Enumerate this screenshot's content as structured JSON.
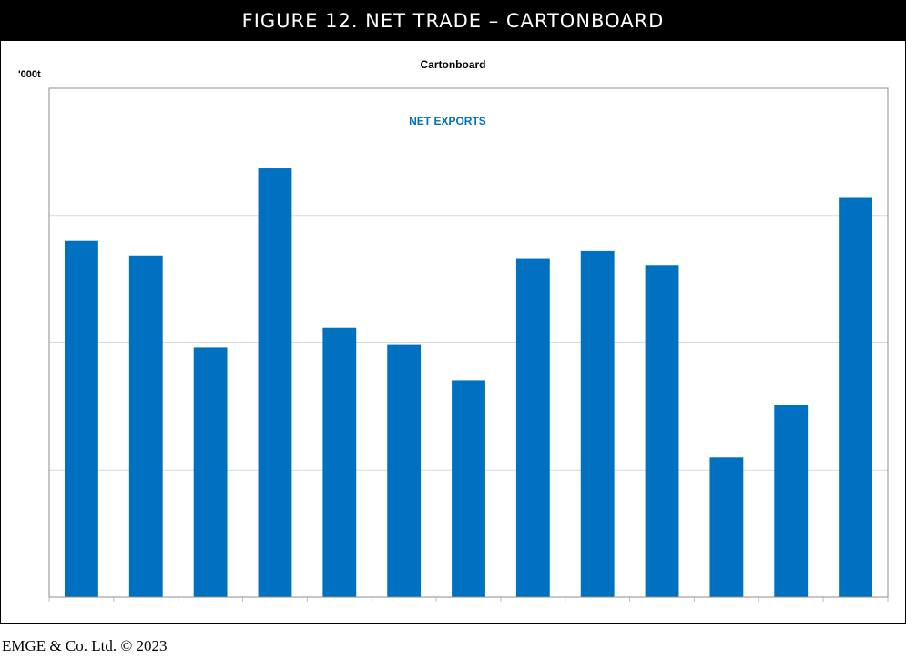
{
  "figure": {
    "banner_title": "FIGURE 12. NET TRADE – CARTONBOARD",
    "footer": "EMGE & Co. Ltd. © 2023"
  },
  "chart_data": {
    "type": "bar",
    "title": "Cartonboard",
    "ylabel": "'000t",
    "annotation": "NET EXPORTS",
    "series": [
      {
        "values": [
          5.6,
          5.37,
          3.93,
          6.74,
          4.24,
          3.97,
          3.4,
          5.33,
          5.44,
          5.22,
          2.2,
          3.02,
          6.29
        ],
        "color": "#0070c0"
      }
    ],
    "ylim": [
      0,
      8
    ],
    "grid": true,
    "gridline_color": "#d9d9d9",
    "legend": "none",
    "x_tick_labels": "none",
    "y_tick_labels": "none"
  }
}
